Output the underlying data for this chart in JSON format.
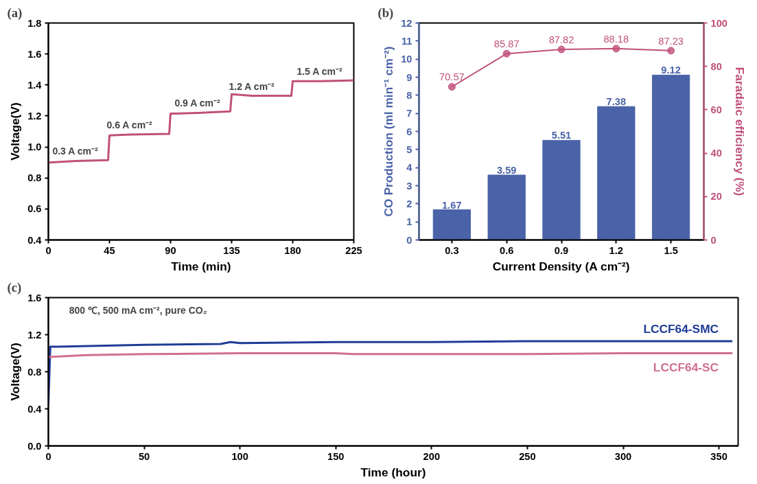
{
  "chart_data": [
    {
      "type": "line",
      "title": "(a)",
      "xlabel": "Time (min)",
      "ylabel": "Voltage(V)",
      "xlim": [
        0,
        225
      ],
      "xticks": [
        0,
        45,
        90,
        135,
        180,
        225
      ],
      "ylim": [
        0.4,
        1.8
      ],
      "yticks": [
        0.4,
        0.6,
        0.8,
        {
          "value": 1,
          "label": "1.0"
        },
        1.2,
        1.4,
        1.6,
        1.8
      ],
      "grid": false,
      "marker": "none",
      "line_style": "solid",
      "x": [
        0,
        20,
        44,
        45,
        60,
        89,
        90,
        110,
        134,
        135,
        150,
        179,
        180,
        200,
        225
      ],
      "series": [
        {
          "color": "#c0507a",
          "values": [
            0.9,
            0.91,
            0.915,
            1.075,
            1.08,
            1.085,
            1.215,
            1.22,
            1.23,
            1.34,
            1.33,
            1.33,
            1.425,
            1.425,
            1.43
          ]
        }
      ],
      "annotations": [
        {
          "text": "0.3 A cm⁻²",
          "x": 20,
          "y": 0.91
        },
        {
          "text": "0.6 A cm⁻²",
          "x": 60,
          "y": 1.08
        },
        {
          "text": "0.9 A cm⁻²",
          "x": 110,
          "y": 1.22
        },
        {
          "text": "1.2 A cm⁻²",
          "x": 150,
          "y": 1.33
        },
        {
          "text": "1.5 A cm⁻²",
          "x": 200,
          "y": 1.425
        }
      ]
    },
    {
      "type": "bar",
      "title": "(b)",
      "xlabel": "Current Density (A cm⁻²)",
      "ylabel": "CO Production (ml min⁻¹ cm⁻²)",
      "y2label": "Faradaic efficiency (%)",
      "categories": [
        "0.3",
        "0.6",
        "0.9",
        "1.2",
        "1.5"
      ],
      "ylim": [
        0,
        12
      ],
      "yticks": [
        0,
        1,
        2,
        3,
        4,
        5,
        6,
        7,
        8,
        9,
        10,
        11,
        12
      ],
      "y2lim": [
        0,
        100
      ],
      "y2ticks": [
        0,
        20,
        40,
        60,
        80,
        100
      ],
      "grid": false,
      "data_labels": true,
      "series": [
        {
          "type": "bar",
          "color": "#4a63a8",
          "values": [
            1.67,
            3.59,
            5.51,
            7.38,
            9.12
          ]
        },
        {
          "type": "line",
          "axis": "y2",
          "marker": "circle",
          "color": "#c0507a",
          "values": [
            70.57,
            85.87,
            87.82,
            88.18,
            87.23
          ]
        }
      ]
    },
    {
      "type": "line",
      "title": "(c)",
      "xlabel": "Time (hour)",
      "ylabel": "Voltage(V)",
      "xlim": [
        0,
        360
      ],
      "xticks": [
        0,
        50,
        100,
        150,
        200,
        250,
        300,
        350
      ],
      "ylim": [
        0.0,
        1.6
      ],
      "yticks": [
        {
          "value": 0,
          "label": "0.0"
        },
        0.4,
        0.8,
        1.2,
        1.6
      ],
      "grid": false,
      "marker": "none",
      "line_style": "solid",
      "series": [
        {
          "name": "LCCF64-SMC",
          "color": "#1f3c96",
          "x": [
            0,
            1,
            5,
            50,
            90,
            95,
            100,
            150,
            200,
            250,
            300,
            357
          ],
          "values": [
            0.45,
            1.07,
            1.07,
            1.09,
            1.1,
            1.12,
            1.11,
            1.12,
            1.12,
            1.13,
            1.13,
            1.13
          ]
        },
        {
          "name": "LCCF64-SC",
          "color": "#d0708f",
          "x": [
            0,
            20,
            50,
            100,
            150,
            160,
            200,
            250,
            300,
            357
          ],
          "values": [
            0.96,
            0.98,
            0.99,
            1.0,
            1.0,
            0.99,
            0.99,
            0.99,
            1.0,
            1.0
          ]
        }
      ],
      "annotations": [
        "800 ℃, 500 mA cm⁻², pure CO₂"
      ]
    }
  ]
}
